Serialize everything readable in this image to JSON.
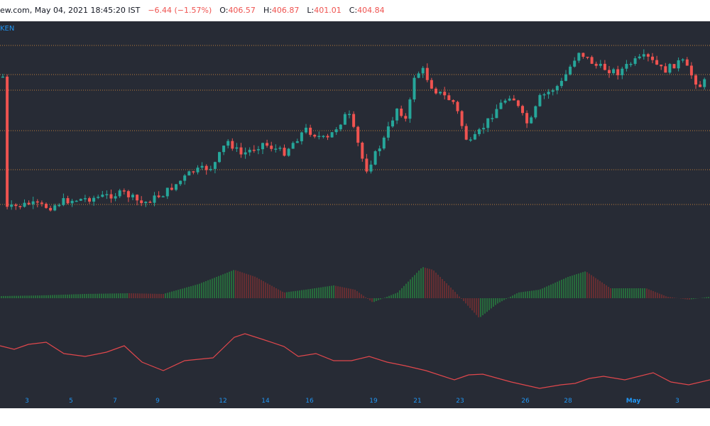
{
  "header": {
    "source_fragment": "ew.com, May 04, 2021 18:45:20 IST",
    "change": "−6.44 (−1.57%)",
    "o_label": "O:",
    "o_value": "406.57",
    "h_label": "H:",
    "h_value": "406.87",
    "l_label": "L:",
    "l_value": "401.01",
    "c_label": "C:",
    "c_value": "404.84"
  },
  "sub_label": "KEN",
  "colors": {
    "background": "#272b35",
    "up": "#26a69a",
    "down": "#ef5350",
    "histogram_up": "#27a844",
    "histogram_down": "#a0322f",
    "oscillator": "#e0474c",
    "level_line": "#c8843c",
    "axis_text": "#2196f3"
  },
  "chart_data": [
    {
      "type": "candlestick",
      "x_tick_labels": [
        "3",
        "5",
        "7",
        "9",
        "12",
        "14",
        "16",
        "19",
        "21",
        "23",
        "26",
        "28",
        "May",
        "3"
      ],
      "horizontal_levels": "6 dotted support/resistance lines",
      "approx_trend": "rising price from early April to early May 2021, last close 404.84"
    },
    {
      "type": "bar",
      "name": "",
      "series_summary": "momentum histogram oscillating around zero"
    },
    {
      "type": "line",
      "name": "",
      "series_summary": "oscillator line drifting lower"
    }
  ]
}
